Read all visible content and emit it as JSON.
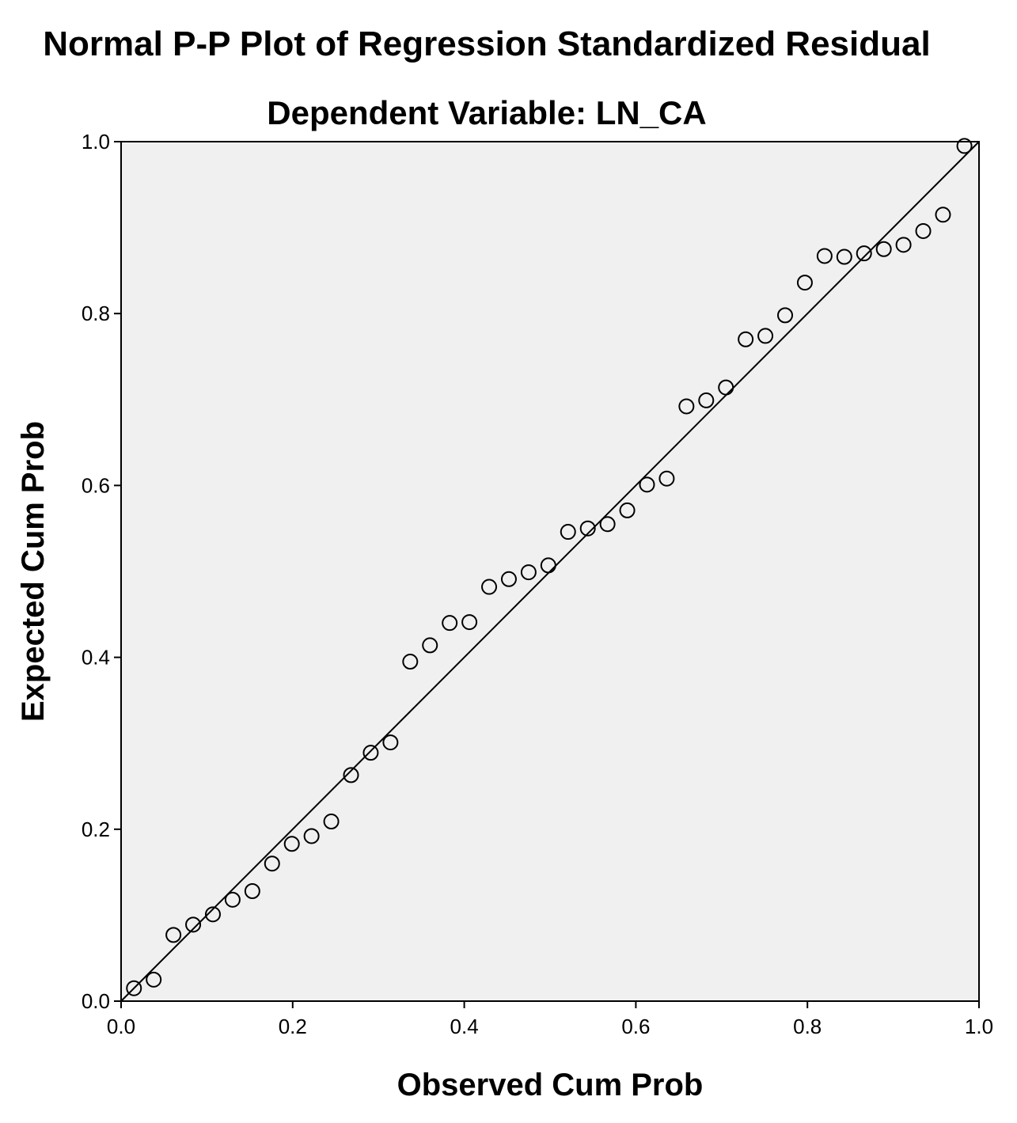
{
  "chart_data": {
    "type": "scatter",
    "title": "Normal P-P Plot of Regression Standardized Residual",
    "subtitle": "Dependent Variable: LN_CA",
    "xlabel": "Observed Cum Prob",
    "ylabel": "Expected Cum Prob",
    "xlim": [
      0.0,
      1.0
    ],
    "ylim": [
      0.0,
      1.0
    ],
    "x_ticks": [
      "0.0",
      "0.2",
      "0.4",
      "0.6",
      "0.8",
      "1.0"
    ],
    "y_ticks": [
      "0.0",
      "0.2",
      "0.4",
      "0.6",
      "0.8",
      "1.0"
    ],
    "grid": false,
    "reference_line": {
      "from": [
        0.0,
        0.0
      ],
      "to": [
        1.0,
        1.0
      ]
    },
    "plot_background": "#f0f0f0",
    "marker_color": "#000000",
    "points": {
      "x": [
        0.015,
        0.038,
        0.061,
        0.084,
        0.107,
        0.13,
        0.153,
        0.176,
        0.199,
        0.222,
        0.245,
        0.268,
        0.291,
        0.314,
        0.337,
        0.36,
        0.383,
        0.406,
        0.429,
        0.452,
        0.475,
        0.498,
        0.521,
        0.544,
        0.567,
        0.59,
        0.613,
        0.636,
        0.659,
        0.682,
        0.705,
        0.728,
        0.751,
        0.774,
        0.797,
        0.82,
        0.843,
        0.866,
        0.889,
        0.912,
        0.935,
        0.958,
        0.983
      ],
      "y": [
        0.015,
        0.025,
        0.077,
        0.089,
        0.101,
        0.118,
        0.128,
        0.16,
        0.183,
        0.192,
        0.209,
        0.263,
        0.289,
        0.301,
        0.395,
        0.414,
        0.44,
        0.441,
        0.482,
        0.491,
        0.499,
        0.507,
        0.546,
        0.55,
        0.555,
        0.571,
        0.601,
        0.608,
        0.692,
        0.699,
        0.714,
        0.77,
        0.774,
        0.798,
        0.836,
        0.867,
        0.866,
        0.87,
        0.875,
        0.88,
        0.896,
        0.915,
        0.995
      ]
    }
  }
}
